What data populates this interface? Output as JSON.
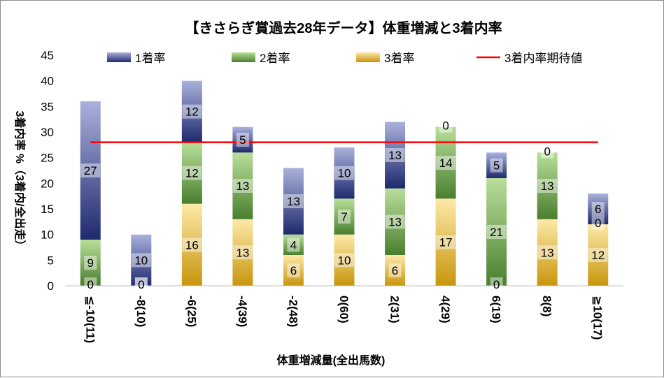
{
  "chart_data": {
    "type": "bar",
    "stacked": true,
    "title": "【きさらぎ賞過去28年データ】体重増減と3着内率",
    "xlabel": "体重増減量(全出馬数)",
    "ylabel": "3着内率 %（3着内/全出走）",
    "ylim": [
      0,
      45
    ],
    "yticks": [
      0,
      5,
      10,
      15,
      20,
      25,
      30,
      35,
      40,
      45
    ],
    "legend_position": "top",
    "categories": [
      "≦-10(11)",
      "-8(10)",
      "-6(25)",
      "-4(39)",
      "-2(48)",
      "0(60)",
      "2(31)",
      "4(29)",
      "6(19)",
      "8(8)",
      "≧10(17)"
    ],
    "series": [
      {
        "name": "3着率",
        "values": [
          0,
          0,
          16,
          13,
          6,
          10,
          6,
          17,
          0,
          13,
          12
        ],
        "color": "#e6b422"
      },
      {
        "name": "2着率",
        "values": [
          9,
          0,
          12,
          13,
          4,
          7,
          13,
          14,
          21,
          13,
          0
        ],
        "color": "#6aa84f"
      },
      {
        "name": "1着率",
        "values": [
          27,
          10,
          12,
          5,
          13,
          10,
          13,
          0,
          5,
          0,
          6
        ],
        "color": "#3c4a9c"
      }
    ],
    "reference_line": {
      "name": "3着内率期待値",
      "value": 28,
      "color": "#ff0000"
    },
    "grid": false
  },
  "legend": [
    {
      "label": "1着率",
      "color": "#3c4a9c"
    },
    {
      "label": "2着率",
      "color": "#6aa84f"
    },
    {
      "label": "3着率",
      "color": "#e6b422"
    },
    {
      "label": "3着内率期待値",
      "color": "#ff0000"
    }
  ]
}
